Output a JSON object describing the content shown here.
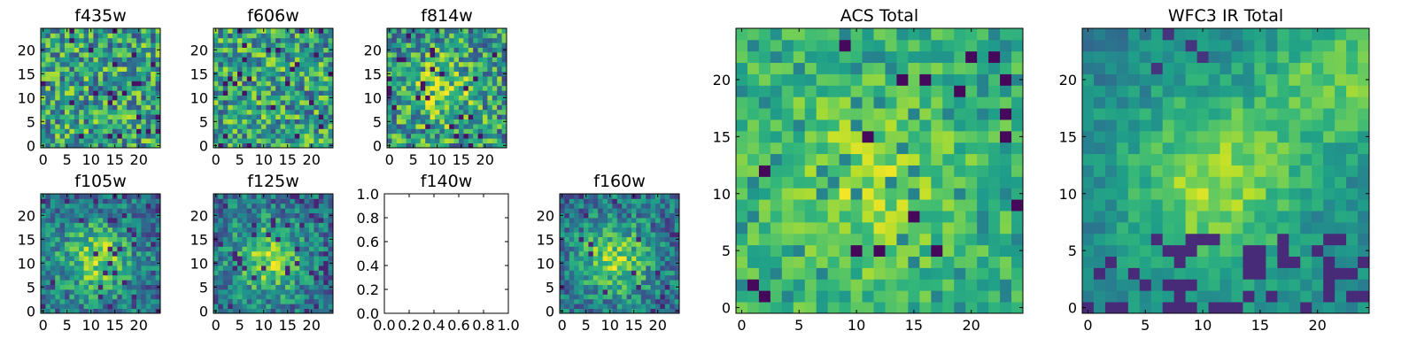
{
  "chart_data": [
    {
      "type": "heatmap",
      "title": "f435w",
      "xticks": [
        "0",
        "5",
        "10",
        "15",
        "20"
      ],
      "yticks": [
        "0",
        "5",
        "10",
        "15",
        "20"
      ],
      "xlim": [
        -0.5,
        24.5
      ],
      "ylim": [
        -0.5,
        24.5
      ],
      "colormap": "viridis",
      "pattern": "noise"
    },
    {
      "type": "heatmap",
      "title": "f606w",
      "xticks": [
        "0",
        "5",
        "10",
        "15",
        "20"
      ],
      "yticks": [
        "0",
        "5",
        "10",
        "15",
        "20"
      ],
      "xlim": [
        -0.5,
        24.5
      ],
      "ylim": [
        -0.5,
        24.5
      ],
      "colormap": "viridis",
      "pattern": "noise"
    },
    {
      "type": "heatmap",
      "title": "f814w",
      "xticks": [
        "0",
        "5",
        "10",
        "15",
        "20"
      ],
      "yticks": [
        "0",
        "5",
        "10",
        "15",
        "20"
      ],
      "xlim": [
        -0.5,
        24.5
      ],
      "ylim": [
        -0.5,
        24.5
      ],
      "colormap": "viridis",
      "pattern": "noise-center-bright"
    },
    {
      "type": "heatmap",
      "title": "f105w",
      "xticks": [
        "0",
        "5",
        "10",
        "15",
        "20"
      ],
      "yticks": [
        "0",
        "5",
        "10",
        "15",
        "20"
      ],
      "xlim": [
        -0.5,
        24.5
      ],
      "ylim": [
        -0.5,
        24.5
      ],
      "colormap": "viridis",
      "pattern": "blob"
    },
    {
      "type": "heatmap",
      "title": "f125w",
      "xticks": [
        "0",
        "5",
        "10",
        "15",
        "20"
      ],
      "yticks": [
        "0",
        "5",
        "10",
        "15",
        "20"
      ],
      "xlim": [
        -0.5,
        24.5
      ],
      "ylim": [
        -0.5,
        24.5
      ],
      "colormap": "viridis",
      "pattern": "blob"
    },
    {
      "type": "empty",
      "title": "f140w",
      "xticks": [
        "0.0",
        "0.2",
        "0.4",
        "0.6",
        "0.8",
        "1.0"
      ],
      "yticks": [
        "0.0",
        "0.2",
        "0.4",
        "0.6",
        "0.8",
        "1.0"
      ],
      "xlim": [
        0,
        1
      ],
      "ylim": [
        0,
        1
      ]
    },
    {
      "type": "heatmap",
      "title": "f160w",
      "xticks": [
        "0",
        "5",
        "10",
        "15",
        "20"
      ],
      "yticks": [
        "0",
        "5",
        "10",
        "15",
        "20"
      ],
      "xlim": [
        -0.5,
        24.5
      ],
      "ylim": [
        -0.5,
        24.5
      ],
      "colormap": "viridis",
      "pattern": "blob"
    },
    {
      "type": "heatmap",
      "title": "ACS Total",
      "xticks": [
        "0",
        "5",
        "10",
        "15",
        "20"
      ],
      "yticks": [
        "0",
        "5",
        "10",
        "15",
        "20"
      ],
      "xlim": [
        -0.5,
        24.5
      ],
      "ylim": [
        -0.5,
        24.5
      ],
      "colormap": "viridis",
      "pattern": "acs"
    },
    {
      "type": "heatmap",
      "title": "WFC3 IR Total",
      "xticks": [
        "0",
        "5",
        "10",
        "15",
        "20"
      ],
      "yticks": [
        "0",
        "5",
        "10",
        "15",
        "20"
      ],
      "xlim": [
        -0.5,
        24.5
      ],
      "ylim": [
        -0.5,
        24.5
      ],
      "colormap": "viridis",
      "pattern": "ir"
    }
  ]
}
